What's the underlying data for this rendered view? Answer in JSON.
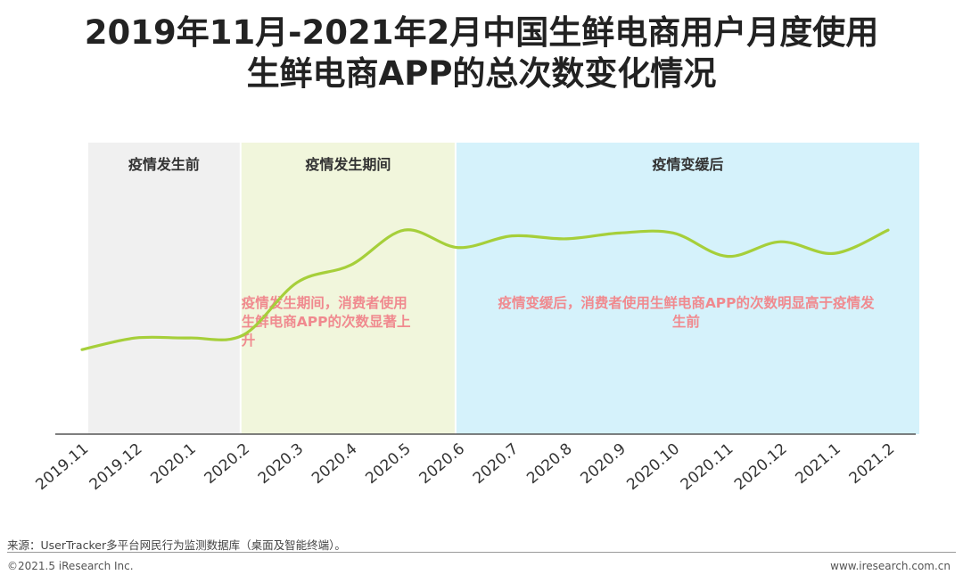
{
  "title": {
    "line1": "2019年11月-2021年2月中国生鲜电商用户月度使用",
    "line2": "生鲜电商APP的总次数变化情况"
  },
  "colors": {
    "before_band": "#f0f0f0",
    "during_band": "#f1f6dc",
    "after_band": "#d5f2fb",
    "line": "#a6cf3a",
    "annotation": "#f08a8f",
    "axis": "#555555"
  },
  "chart_data": {
    "type": "line",
    "categories": [
      "2019.11",
      "2019.12",
      "2020.1",
      "2020.2",
      "2020.3",
      "2020.4",
      "2020.5",
      "2020.6",
      "2020.7",
      "2020.8",
      "2020.9",
      "2020.10",
      "2020.11",
      "2020.12",
      "2021.1",
      "2021.2"
    ],
    "series": [
      {
        "name": "",
        "values": [
          29,
          33,
          33,
          34,
          52,
          58,
          70,
          64,
          68,
          67,
          69,
          69,
          61,
          66,
          62,
          70
        ]
      }
    ],
    "ylim": [
      0,
      100
    ],
    "y_axis_shown": false,
    "grid": false,
    "legend": "none",
    "phases": [
      {
        "label": "疫情发生前",
        "from": "2019.11",
        "to": "2020.2"
      },
      {
        "label": "疫情发生期间",
        "from": "2020.2",
        "to": "2020.6"
      },
      {
        "label": "疫情变缓后",
        "from": "2020.6",
        "to": "2021.2"
      }
    ],
    "annotations": [
      {
        "phase": "during",
        "lines": [
          "疫情发生期间，消费者使用",
          "生鲜电商APP的次数显著上",
          "升"
        ]
      },
      {
        "phase": "after",
        "lines": [
          "疫情变缓后，消费者使用生鲜电商APP的次数明显高于疫情发",
          "生前"
        ]
      }
    ]
  },
  "footer": {
    "source": "来源：UserTracker多平台网民行为监测数据库（桌面及智能终端）。",
    "copyright": "©2021.5 iResearch Inc.",
    "website": "www.iresearch.com.cn"
  }
}
